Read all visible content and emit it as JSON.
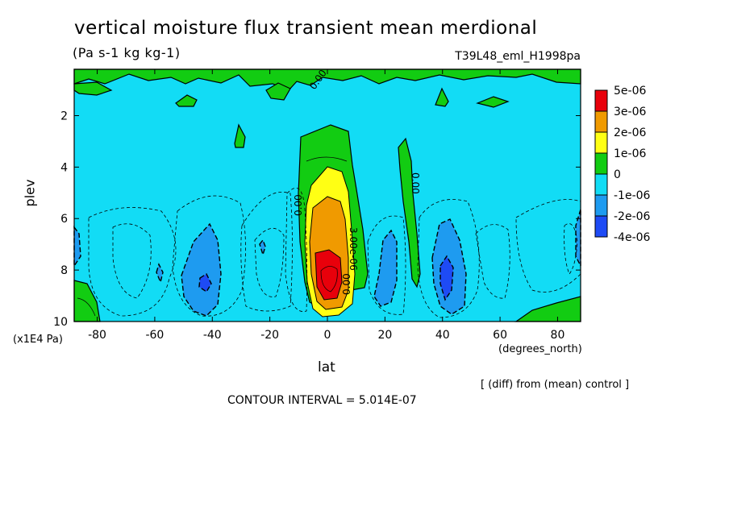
{
  "title": "vertical moisture flux transient mean merdional",
  "units": "(Pa s-1 kg kg-1)",
  "run_label": "T39L48_eml_H1998pa",
  "footer_diff": "[ (diff) from (mean) control ]",
  "contour_interval": "CONTOUR INTERVAL = 5.014E-07",
  "chart_data": {
    "type": "heatmap",
    "xlabel": "lat",
    "x_unit": "(degrees_north)",
    "ylabel": "plev",
    "y_unit": "(x1E4 Pa)",
    "xlim": [
      -88,
      88
    ],
    "ylim": [
      10,
      0.2
    ],
    "x_ticks": [
      -80,
      -60,
      -40,
      -20,
      0,
      20,
      40,
      60,
      80
    ],
    "y_ticks": [
      2,
      4,
      6,
      8,
      10
    ],
    "colorbar": [
      {
        "label": "5e-06",
        "color": "#e8000b"
      },
      {
        "label": "3e-06",
        "color": "#f09a00"
      },
      {
        "label": "2e-06",
        "color": "#ffff14"
      },
      {
        "label": "1e-06",
        "color": "#12cc12"
      },
      {
        "label": "0",
        "color": "#12dcf5"
      },
      {
        "label": "-1e-06",
        "color": "#1e9bf0"
      },
      {
        "label": "-2e-06",
        "color": "#1e4bf5"
      },
      {
        "label": "-4e-06",
        "color": ""
      }
    ],
    "background_color": "#12dcf5",
    "contour_labels": [
      "0.00",
      "0.00",
      "0.00",
      "0.00",
      "3.00e-06"
    ],
    "features": [
      {
        "kind": "max",
        "lat": 0,
        "plev": 8.2,
        "value": 5e-06
      },
      {
        "kind": "min",
        "lat": -42,
        "plev": 8.4,
        "value": -2e-06
      },
      {
        "kind": "min",
        "lat": 42,
        "plev": 8.3,
        "value": -2e-06
      },
      {
        "kind": "min",
        "lat": 22,
        "plev": 7.6,
        "value": -1e-06
      }
    ]
  }
}
